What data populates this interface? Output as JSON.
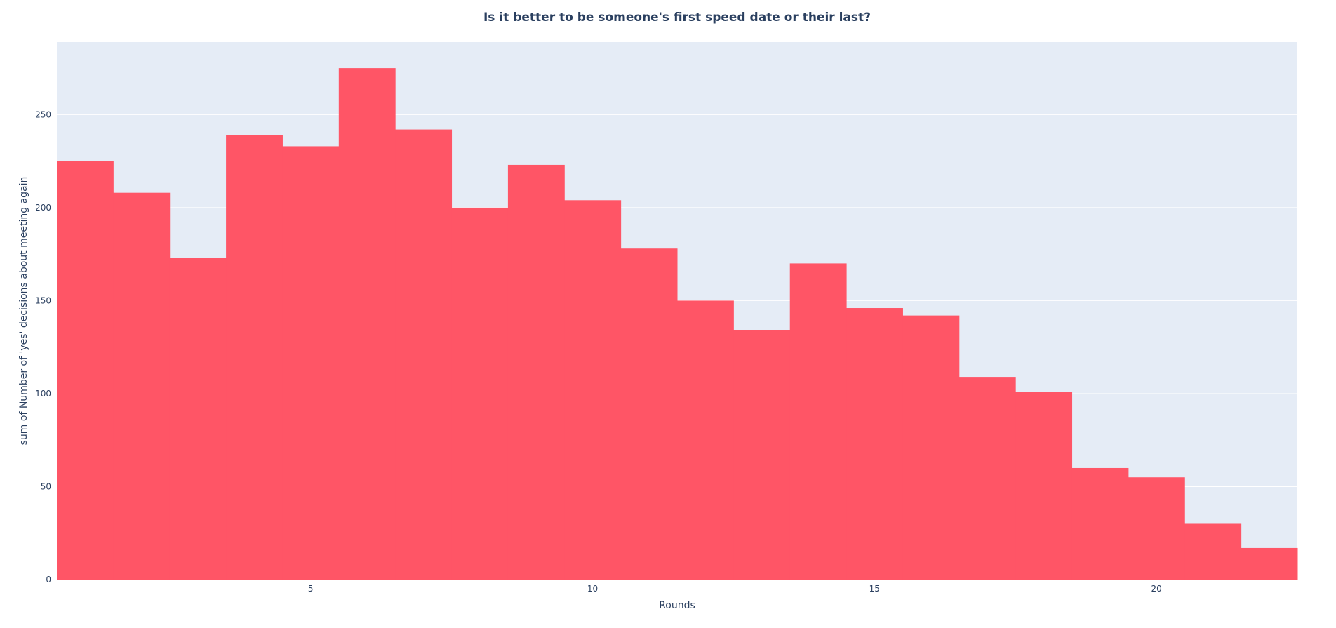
{
  "chart_data": {
    "type": "bar",
    "title": "Is it better to be someone's first speed date or their last?",
    "xlabel": "Rounds",
    "ylabel": "sum of Number of 'yes' decisions about meeting again",
    "x": [
      1,
      2,
      3,
      4,
      5,
      6,
      7,
      8,
      9,
      10,
      11,
      12,
      13,
      14,
      15,
      16,
      17,
      18,
      19,
      20,
      21,
      22
    ],
    "values": [
      225,
      208,
      173,
      239,
      233,
      275,
      242,
      200,
      223,
      204,
      178,
      150,
      134,
      170,
      146,
      142,
      109,
      101,
      60,
      55,
      30,
      17
    ],
    "xlim": [
      0.5,
      22.5
    ],
    "ylim": [
      0,
      289
    ],
    "xticks": [
      5,
      10,
      15,
      20
    ],
    "yticks": [
      0,
      50,
      100,
      150,
      200,
      250
    ],
    "grid": true,
    "bar_color": "#ff5566",
    "plot_bg": "#e5ecf6",
    "text_color": "#2a3f5f"
  }
}
